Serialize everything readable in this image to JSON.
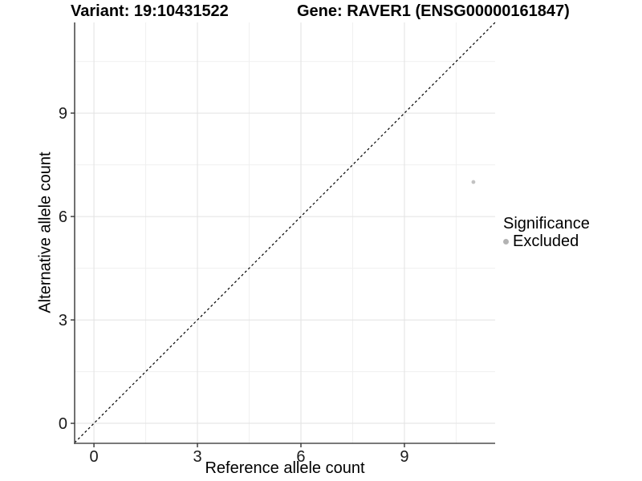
{
  "chart_data": {
    "type": "scatter",
    "title_left": "Variant: 19:10431522",
    "title_right": "Gene: RAVER1 (ENSG00000161847)",
    "xlabel": "Reference allele count",
    "ylabel": "Alternative allele count",
    "x_ticks": [
      0,
      3,
      6,
      9
    ],
    "y_ticks": [
      0,
      3,
      6,
      9
    ],
    "x_minor_ticks": [
      1.5,
      4.5,
      7.5,
      10.5
    ],
    "y_minor_ticks": [
      1.5,
      4.5,
      7.5,
      10.5
    ],
    "xlim": [
      -0.56,
      11.63
    ],
    "ylim": [
      -0.58,
      11.63
    ],
    "grid": "major-and-minor",
    "identity_line": {
      "slope": 1,
      "intercept": 0,
      "style": "dashed",
      "color": "#000000"
    },
    "series": [
      {
        "name": "Excluded",
        "color": "#c2c2c2",
        "points": [
          {
            "x": 11,
            "y": 7
          }
        ]
      }
    ],
    "legend": {
      "title": "Significance",
      "position": "right",
      "entries": [
        {
          "label": "Excluded",
          "color": "#b3b3b3"
        }
      ]
    },
    "colors": {
      "axis_line": "#4d4d4d",
      "tick_mark": "#333333",
      "tick_label": "#1a1a1a",
      "grid_major": "#e2e2e2",
      "grid_minor": "#f0f0f0",
      "background": "#ffffff"
    }
  }
}
